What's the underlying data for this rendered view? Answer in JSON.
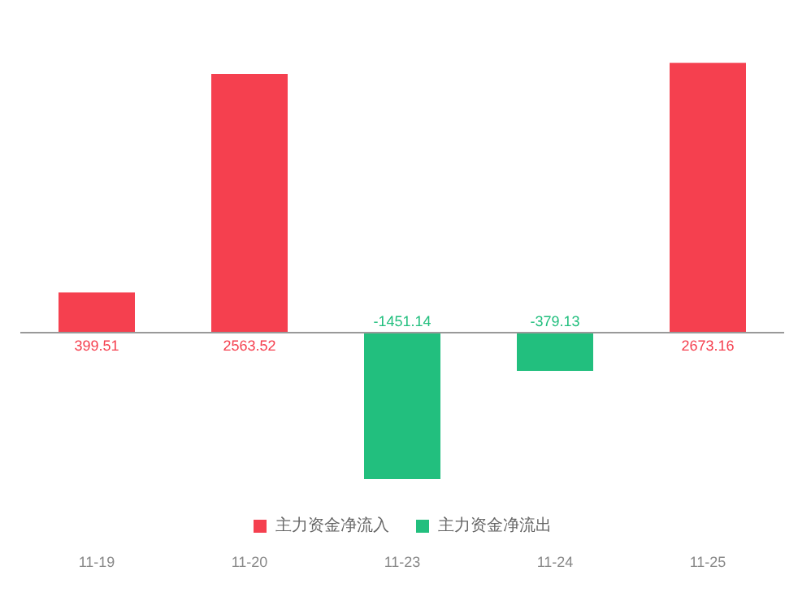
{
  "chart_data": {
    "type": "bar",
    "categories": [
      "11-19",
      "11-20",
      "11-23",
      "11-24",
      "11-25"
    ],
    "series": [
      {
        "name": "主力资金净流入",
        "color": "#f5404f",
        "values": [
          399.51,
          2563.52,
          null,
          null,
          2673.16
        ]
      },
      {
        "name": "主力资金净流出",
        "color": "#22bf7e",
        "values": [
          null,
          null,
          -1451.14,
          -379.13,
          null
        ]
      }
    ],
    "data_labels": true,
    "legend": "bottom",
    "grid": false
  }
}
